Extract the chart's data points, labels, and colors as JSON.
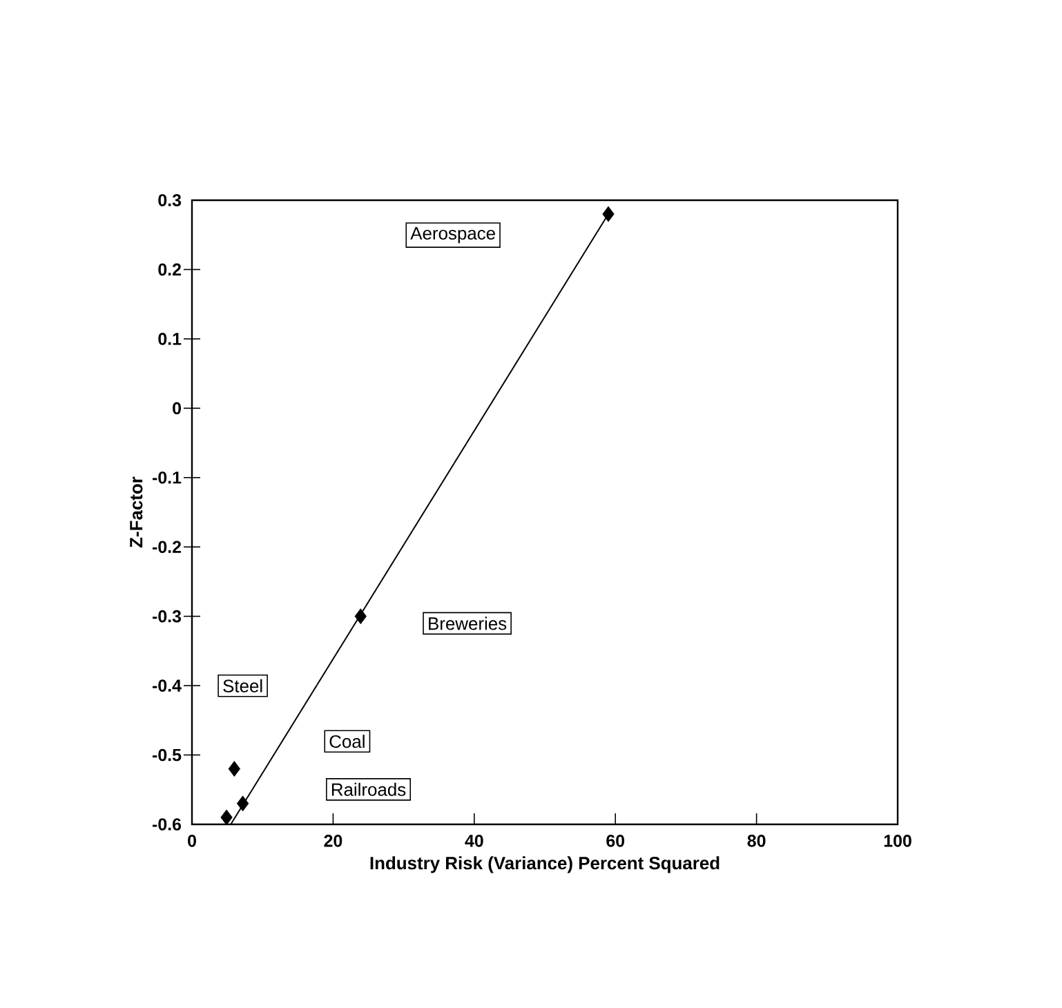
{
  "chart_data": {
    "type": "scatter",
    "xlabel": "Industry Risk (Variance) Percent Squared",
    "ylabel": "Z-Factor",
    "xlim": [
      0,
      100
    ],
    "ylim": [
      -0.6,
      0.3
    ],
    "xticks": [
      0,
      20,
      40,
      60,
      80,
      100
    ],
    "yticks": [
      -0.6,
      -0.5,
      -0.4,
      -0.3,
      -0.2,
      -0.1,
      0,
      0.1,
      0.2,
      0.3
    ],
    "grid": false,
    "series": [
      {
        "color": "#000000",
        "marker": "diamond",
        "x": [
          59,
          23.9,
          6,
          7.2,
          4.9
        ],
        "values": [
          0.28,
          -0.3,
          -0.52,
          -0.57,
          -0.59
        ]
      },
      {
        "type": "line",
        "color": "#000000",
        "marker": "none",
        "line_style": "solid",
        "x": [
          5.5,
          59
        ],
        "values": [
          -0.6,
          0.28
        ]
      }
    ],
    "annotations": [
      "Aerospace",
      "Breweries",
      "Steel",
      "Railroads",
      "Coal"
    ]
  }
}
